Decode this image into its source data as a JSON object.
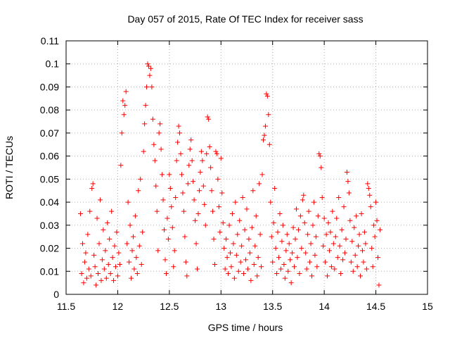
{
  "chart_data": {
    "type": "scatter",
    "title": "Day 057 of 2015, Rate Of TEC Index for receiver sass",
    "xlabel": "GPS time / hours",
    "ylabel": "ROTI / TECUs",
    "xlim": [
      11.5,
      15
    ],
    "ylim": [
      0,
      0.11
    ],
    "grid": true,
    "x_ticks": [
      11.5,
      12,
      12.5,
      13,
      13.5,
      14,
      14.5,
      15
    ],
    "x_tick_labels": [
      "11.5",
      "12",
      "12.5",
      "13",
      "13.5",
      "14",
      "14.5",
      "15"
    ],
    "y_ticks": [
      0,
      0.01,
      0.02,
      0.03,
      0.04,
      0.05,
      0.06,
      0.07,
      0.08,
      0.09,
      0.1,
      0.11
    ],
    "y_tick_labels": [
      "0",
      "0.01",
      "0.02",
      "0.03",
      "0.04",
      "0.05",
      "0.06",
      "0.07",
      "0.08",
      "0.09",
      "0.1",
      "0.11"
    ],
    "marker": "+",
    "color": "#ff0000",
    "series": [
      {
        "name": "ROTI",
        "points": [
          [
            11.64,
            0.035
          ],
          [
            11.65,
            0.009
          ],
          [
            11.66,
            0.022
          ],
          [
            11.67,
            0.005
          ],
          [
            11.68,
            0.014
          ],
          [
            11.69,
            0.018
          ],
          [
            11.7,
            0.007
          ],
          [
            11.71,
            0.026
          ],
          [
            11.72,
            0.011
          ],
          [
            11.73,
            0.036
          ],
          [
            11.74,
            0.008
          ],
          [
            11.75,
            0.046
          ],
          [
            11.76,
            0.048
          ],
          [
            11.77,
            0.017
          ],
          [
            11.78,
            0.012
          ],
          [
            11.79,
            0.004
          ],
          [
            11.8,
            0.033
          ],
          [
            11.81,
            0.009
          ],
          [
            11.82,
            0.022
          ],
          [
            11.83,
            0.041
          ],
          [
            11.84,
            0.006
          ],
          [
            11.85,
            0.015
          ],
          [
            11.86,
            0.028
          ],
          [
            11.87,
            0.011
          ],
          [
            11.88,
            0.019
          ],
          [
            11.89,
            0.007
          ],
          [
            11.9,
            0.031
          ],
          [
            11.91,
            0.013
          ],
          [
            11.92,
            0.024
          ],
          [
            11.93,
            0.009
          ],
          [
            11.94,
            0.036
          ],
          [
            11.95,
            0.016
          ],
          [
            11.96,
            0.006
          ],
          [
            11.97,
            0.021
          ],
          [
            11.98,
            0.012
          ],
          [
            11.99,
            0.027
          ],
          [
            12.0,
            0.008
          ],
          [
            12.01,
            0.018
          ],
          [
            12.02,
            0.013
          ],
          [
            12.03,
            0.056
          ],
          [
            12.04,
            0.07
          ],
          [
            12.05,
            0.084
          ],
          [
            12.06,
            0.078
          ],
          [
            12.07,
            0.082
          ],
          [
            12.08,
            0.088
          ],
          [
            12.09,
            0.022
          ],
          [
            12.1,
            0.04
          ],
          [
            12.11,
            0.014
          ],
          [
            12.12,
            0.03
          ],
          [
            12.13,
            0.007
          ],
          [
            12.14,
            0.019
          ],
          [
            12.15,
            0.025
          ],
          [
            12.16,
            0.011
          ],
          [
            12.17,
            0.034
          ],
          [
            12.18,
            0.016
          ],
          [
            12.19,
            0.009
          ],
          [
            12.2,
            0.045
          ],
          [
            12.21,
            0.021
          ],
          [
            12.22,
            0.05
          ],
          [
            12.23,
            0.013
          ],
          [
            12.24,
            0.027
          ],
          [
            12.25,
            0.062
          ],
          [
            12.26,
            0.074
          ],
          [
            12.27,
            0.082
          ],
          [
            12.28,
            0.09
          ],
          [
            12.29,
            0.1
          ],
          [
            12.3,
            0.099
          ],
          [
            12.31,
            0.095
          ],
          [
            12.32,
            0.098
          ],
          [
            12.33,
            0.09
          ],
          [
            12.34,
            0.076
          ],
          [
            12.35,
            0.065
          ],
          [
            12.36,
            0.058
          ],
          [
            12.37,
            0.047
          ],
          [
            12.38,
            0.036
          ],
          [
            12.39,
            0.019
          ],
          [
            12.4,
            0.07
          ],
          [
            12.41,
            0.074
          ],
          [
            12.42,
            0.063
          ],
          [
            12.43,
            0.052
          ],
          [
            12.44,
            0.041
          ],
          [
            12.45,
            0.028
          ],
          [
            12.46,
            0.015
          ],
          [
            12.47,
            0.009
          ],
          [
            12.48,
            0.033
          ],
          [
            12.49,
            0.024
          ],
          [
            12.5,
            0.052
          ],
          [
            12.51,
            0.046
          ],
          [
            12.52,
            0.038
          ],
          [
            12.53,
            0.029
          ],
          [
            12.54,
            0.012
          ],
          [
            12.55,
            0.019
          ],
          [
            12.56,
            0.042
          ],
          [
            12.57,
            0.058
          ],
          [
            12.58,
            0.066
          ],
          [
            12.59,
            0.073
          ],
          [
            12.6,
            0.07
          ],
          [
            12.61,
            0.061
          ],
          [
            12.62,
            0.052
          ],
          [
            12.63,
            0.044
          ],
          [
            12.64,
            0.036
          ],
          [
            12.65,
            0.025
          ],
          [
            12.66,
            0.014
          ],
          [
            12.67,
            0.008
          ],
          [
            12.68,
            0.048
          ],
          [
            12.69,
            0.056
          ],
          [
            12.7,
            0.063
          ],
          [
            12.71,
            0.067
          ],
          [
            12.72,
            0.058
          ],
          [
            12.73,
            0.049
          ],
          [
            12.74,
            0.041
          ],
          [
            12.75,
            0.032
          ],
          [
            12.76,
            0.022
          ],
          [
            12.77,
            0.011
          ],
          [
            12.78,
            0.035
          ],
          [
            12.79,
            0.045
          ],
          [
            12.8,
            0.053
          ],
          [
            12.81,
            0.062
          ],
          [
            12.82,
            0.058
          ],
          [
            12.83,
            0.047
          ],
          [
            12.84,
            0.039
          ],
          [
            12.85,
            0.03
          ],
          [
            12.86,
            0.061
          ],
          [
            12.87,
            0.077
          ],
          [
            12.88,
            0.076
          ],
          [
            12.89,
            0.064
          ],
          [
            12.9,
            0.055
          ],
          [
            12.91,
            0.045
          ],
          [
            12.92,
            0.036
          ],
          [
            12.93,
            0.024
          ],
          [
            12.94,
            0.013
          ],
          [
            12.95,
            0.062
          ],
          [
            12.96,
            0.061
          ],
          [
            12.97,
            0.05
          ],
          [
            12.98,
            0.038
          ],
          [
            12.99,
            0.027
          ],
          [
            13.0,
            0.059
          ],
          [
            13.01,
            0.044
          ],
          [
            13.02,
            0.031
          ],
          [
            13.03,
            0.02
          ],
          [
            13.04,
            0.011
          ],
          [
            13.05,
            0.024
          ],
          [
            13.06,
            0.016
          ],
          [
            13.07,
            0.009
          ],
          [
            13.08,
            0.03
          ],
          [
            13.09,
            0.018
          ],
          [
            13.1,
            0.012
          ],
          [
            13.11,
            0.035
          ],
          [
            13.12,
            0.022
          ],
          [
            13.13,
            0.007
          ],
          [
            13.14,
            0.04
          ],
          [
            13.15,
            0.017
          ],
          [
            13.16,
            0.026
          ],
          [
            13.17,
            0.01
          ],
          [
            13.18,
            0.032
          ],
          [
            13.19,
            0.014
          ],
          [
            13.2,
            0.021
          ],
          [
            13.21,
            0.042
          ],
          [
            13.22,
            0.009
          ],
          [
            13.23,
            0.028
          ],
          [
            13.24,
            0.015
          ],
          [
            13.25,
            0.037
          ],
          [
            13.26,
            0.011
          ],
          [
            13.27,
            0.024
          ],
          [
            13.28,
            0.018
          ],
          [
            13.29,
            0.006
          ],
          [
            13.3,
            0.029
          ],
          [
            13.31,
            0.045
          ],
          [
            13.32,
            0.013
          ],
          [
            13.33,
            0.021
          ],
          [
            13.34,
            0.034
          ],
          [
            13.35,
            0.008
          ],
          [
            13.36,
            0.016
          ],
          [
            13.37,
            0.048
          ],
          [
            13.38,
            0.026
          ],
          [
            13.39,
            0.012
          ],
          [
            13.4,
            0.052
          ],
          [
            13.41,
            0.067
          ],
          [
            13.42,
            0.069
          ],
          [
            13.43,
            0.073
          ],
          [
            13.44,
            0.087
          ],
          [
            13.45,
            0.086
          ],
          [
            13.46,
            0.078
          ],
          [
            13.47,
            0.065
          ],
          [
            13.48,
            0.04
          ],
          [
            13.49,
            0.025
          ],
          [
            13.5,
            0.014
          ],
          [
            13.51,
            0.031
          ],
          [
            13.52,
            0.046
          ],
          [
            13.53,
            0.02
          ],
          [
            13.54,
            0.009
          ],
          [
            13.55,
            0.027
          ],
          [
            13.56,
            0.016
          ],
          [
            13.57,
            0.035
          ],
          [
            13.58,
            0.011
          ],
          [
            13.59,
            0.023
          ],
          [
            13.6,
            0.03
          ],
          [
            13.61,
            0.013
          ],
          [
            13.62,
            0.007
          ],
          [
            13.63,
            0.019
          ],
          [
            13.64,
            0.026
          ],
          [
            13.65,
            0.01
          ],
          [
            13.66,
            0.022
          ],
          [
            13.67,
            0.015
          ],
          [
            13.68,
            0.005
          ],
          [
            13.69,
            0.018
          ],
          [
            13.7,
            0.029
          ],
          [
            13.71,
            0.012
          ],
          [
            13.72,
            0.024
          ],
          [
            13.73,
            0.037
          ],
          [
            13.74,
            0.016
          ],
          [
            13.75,
            0.028
          ],
          [
            13.76,
            0.009
          ],
          [
            13.77,
            0.034
          ],
          [
            13.78,
            0.02
          ],
          [
            13.79,
            0.041
          ],
          [
            13.8,
            0.043
          ],
          [
            13.81,
            0.031
          ],
          [
            13.82,
            0.018
          ],
          [
            13.83,
            0.011
          ],
          [
            13.84,
            0.026
          ],
          [
            13.85,
            0.036
          ],
          [
            13.86,
            0.014
          ],
          [
            13.87,
            0.022
          ],
          [
            13.88,
            0.008
          ],
          [
            13.89,
            0.03
          ],
          [
            13.9,
            0.04
          ],
          [
            13.91,
            0.017
          ],
          [
            13.92,
            0.025
          ],
          [
            13.93,
            0.012
          ],
          [
            13.94,
            0.034
          ],
          [
            13.95,
            0.061
          ],
          [
            13.96,
            0.06
          ],
          [
            13.97,
            0.055
          ],
          [
            13.98,
            0.042
          ],
          [
            13.99,
            0.021
          ],
          [
            14.0,
            0.033
          ],
          [
            14.01,
            0.014
          ],
          [
            14.02,
            0.026
          ],
          [
            14.03,
            0.008
          ],
          [
            14.04,
            0.031
          ],
          [
            14.05,
            0.019
          ],
          [
            14.06,
            0.027
          ],
          [
            14.07,
            0.012
          ],
          [
            14.08,
            0.036
          ],
          [
            14.09,
            0.022
          ],
          [
            14.1,
            0.011
          ],
          [
            14.11,
            0.025
          ],
          [
            14.12,
            0.033
          ],
          [
            14.13,
            0.016
          ],
          [
            14.14,
            0.042
          ],
          [
            14.15,
            0.021
          ],
          [
            14.16,
            0.009
          ],
          [
            14.17,
            0.028
          ],
          [
            14.18,
            0.015
          ],
          [
            14.19,
            0.038
          ],
          [
            14.2,
            0.018
          ],
          [
            14.21,
            0.024
          ],
          [
            14.22,
            0.053
          ],
          [
            14.23,
            0.049
          ],
          [
            14.24,
            0.044
          ],
          [
            14.25,
            0.032
          ],
          [
            14.26,
            0.014
          ],
          [
            14.27,
            0.023
          ],
          [
            14.28,
            0.01
          ],
          [
            14.29,
            0.029
          ],
          [
            14.3,
            0.017
          ],
          [
            14.31,
            0.034
          ],
          [
            14.32,
            0.012
          ],
          [
            14.33,
            0.021
          ],
          [
            14.34,
            0.026
          ],
          [
            14.35,
            0.008
          ],
          [
            14.36,
            0.035
          ],
          [
            14.37,
            0.019
          ],
          [
            14.38,
            0.014
          ],
          [
            14.39,
            0.027
          ],
          [
            14.4,
            0.022
          ],
          [
            14.41,
            0.011
          ],
          [
            14.42,
            0.048
          ],
          [
            14.43,
            0.046
          ],
          [
            14.44,
            0.043
          ],
          [
            14.45,
            0.038
          ],
          [
            14.46,
            0.02
          ],
          [
            14.47,
            0.012
          ],
          [
            14.48,
            0.03
          ],
          [
            14.49,
            0.025
          ],
          [
            14.5,
            0.04
          ],
          [
            14.51,
            0.032
          ],
          [
            14.52,
            0.016
          ],
          [
            14.53,
            0.004
          ],
          [
            14.54,
            0.028
          ]
        ]
      }
    ]
  }
}
